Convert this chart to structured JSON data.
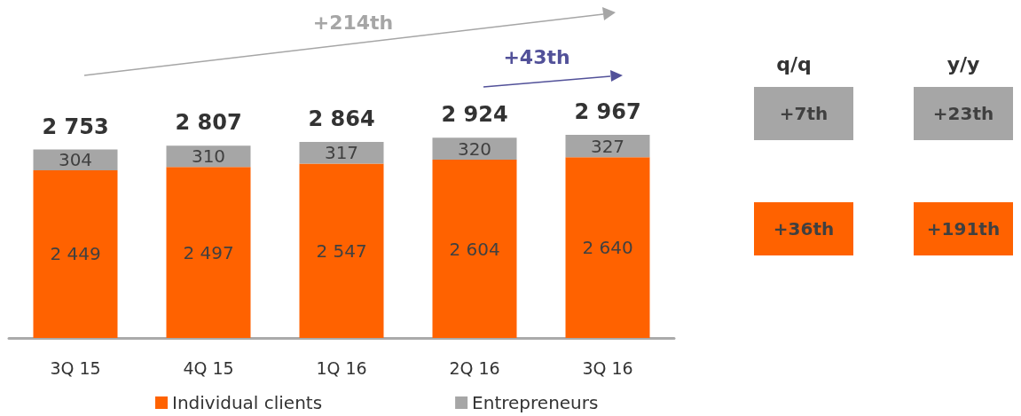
{
  "chart_data": {
    "type": "bar",
    "stacked": true,
    "categories": [
      "3Q 15",
      "4Q 15",
      "1Q 16",
      "2Q 16",
      "3Q 16"
    ],
    "series": [
      {
        "name": "Individual clients",
        "color": "#ff6200",
        "values": [
          2449,
          2497,
          2547,
          2604,
          2640
        ],
        "value_labels": [
          "2 449",
          "2 497",
          "2 547",
          "2 604",
          "2 640"
        ]
      },
      {
        "name": "Entrepreneurs",
        "color": "#a6a6a6",
        "values": [
          304,
          310,
          317,
          320,
          327
        ],
        "value_labels": [
          "304",
          "310",
          "317",
          "320",
          "327"
        ]
      }
    ],
    "totals": [
      "2 753",
      "2 807",
      "2 864",
      "2 924",
      "2 967"
    ],
    "legend": "bottom",
    "annotations": [
      "+214th",
      "+43th",
      "q/q",
      "y/y",
      "+7th",
      "+23th",
      "+36th",
      "+191th"
    ]
  }
}
